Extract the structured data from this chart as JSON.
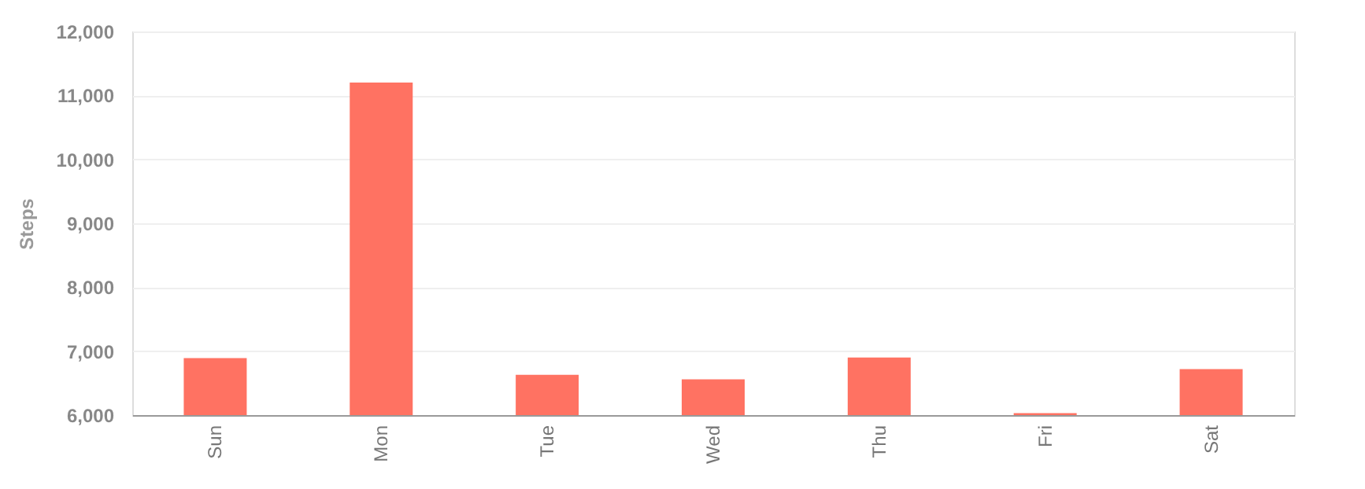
{
  "chart_data": {
    "type": "bar",
    "ylabel": "Steps",
    "categories": [
      "Sun",
      "Mon",
      "Tue",
      "Wed",
      "Thu",
      "Fri",
      "Sat"
    ],
    "values": [
      6890,
      11200,
      6630,
      6560,
      6900,
      6030,
      6720
    ],
    "color": "#ff7262",
    "ylim": [
      6000,
      12000
    ],
    "yticks": [
      {
        "value": 6000,
        "label": "6,000"
      },
      {
        "value": 7000,
        "label": "7,000"
      },
      {
        "value": 8000,
        "label": "8,000"
      },
      {
        "value": 9000,
        "label": "9,000"
      },
      {
        "value": 10000,
        "label": "10,000"
      },
      {
        "value": 11000,
        "label": "11,000"
      },
      {
        "value": 12000,
        "label": "12,000"
      }
    ],
    "grid": "y"
  }
}
